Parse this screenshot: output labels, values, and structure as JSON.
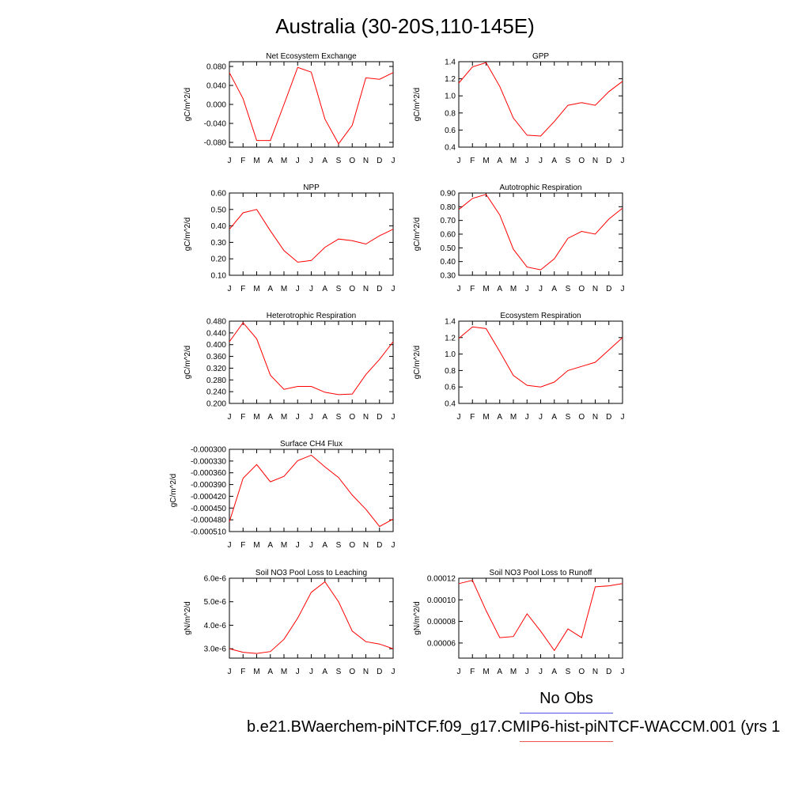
{
  "title": "Australia (30-20S,110-145E)",
  "legend": {
    "obs_label": "No Obs",
    "obs_color": "#5555ee",
    "model_color": "#ee5555"
  },
  "case_label": "b.e21.BWaerchem-piNTCF.f09_g17.CMIP6-hist-piNTCF-WACCM.001 (yrs 1",
  "line_color": "#ff0000",
  "chart_data": [
    {
      "type": "line",
      "title": "Net Ecosystem Exchange",
      "ylabel": "gC/m^2/d",
      "categories": [
        "J",
        "F",
        "M",
        "A",
        "M",
        "J",
        "J",
        "A",
        "S",
        "O",
        "N",
        "D",
        "J"
      ],
      "ylim": [
        -0.09,
        0.09
      ],
      "yticks": [
        -0.08,
        -0.04,
        0.0,
        0.04,
        0.08
      ],
      "yticklabels": [
        "-0.080",
        "-0.040",
        "0.000",
        "0.040",
        "0.080"
      ],
      "values": [
        0.067,
        0.012,
        -0.076,
        -0.076,
        0.0,
        0.078,
        0.068,
        -0.031,
        -0.083,
        -0.044,
        0.056,
        0.053,
        0.067
      ]
    },
    {
      "type": "line",
      "title": "GPP",
      "ylabel": "gC/m^2/d",
      "categories": [
        "J",
        "F",
        "M",
        "A",
        "M",
        "J",
        "J",
        "A",
        "S",
        "O",
        "N",
        "D",
        "J"
      ],
      "ylim": [
        0.4,
        1.4
      ],
      "yticks": [
        0.4,
        0.6,
        0.8,
        1.0,
        1.2,
        1.4
      ],
      "yticklabels": [
        "0.4",
        "0.6",
        "0.8",
        "1.0",
        "1.2",
        "1.4"
      ],
      "values": [
        1.15,
        1.34,
        1.39,
        1.11,
        0.74,
        0.54,
        0.53,
        0.7,
        0.89,
        0.92,
        0.89,
        1.05,
        1.17
      ]
    },
    {
      "type": "line",
      "title": "NPP",
      "ylabel": "gC/m^2/d",
      "categories": [
        "J",
        "F",
        "M",
        "A",
        "M",
        "J",
        "J",
        "A",
        "S",
        "O",
        "N",
        "D",
        "J"
      ],
      "ylim": [
        0.1,
        0.6
      ],
      "yticks": [
        0.1,
        0.2,
        0.3,
        0.4,
        0.5,
        0.6
      ],
      "yticklabels": [
        "0.10",
        "0.20",
        "0.30",
        "0.40",
        "0.50",
        "0.60"
      ],
      "values": [
        0.38,
        0.48,
        0.5,
        0.37,
        0.25,
        0.18,
        0.19,
        0.27,
        0.32,
        0.31,
        0.29,
        0.34,
        0.38
      ]
    },
    {
      "type": "line",
      "title": "Autotrophic Respiration",
      "ylabel": "gC/m^2/d",
      "categories": [
        "J",
        "F",
        "M",
        "A",
        "M",
        "J",
        "J",
        "A",
        "S",
        "O",
        "N",
        "D",
        "J"
      ],
      "ylim": [
        0.3,
        0.9
      ],
      "yticks": [
        0.3,
        0.4,
        0.5,
        0.6,
        0.7,
        0.8,
        0.9
      ],
      "yticklabels": [
        "0.30",
        "0.40",
        "0.50",
        "0.60",
        "0.70",
        "0.80",
        "0.90"
      ],
      "values": [
        0.78,
        0.86,
        0.89,
        0.74,
        0.49,
        0.36,
        0.34,
        0.42,
        0.57,
        0.62,
        0.6,
        0.71,
        0.79
      ]
    },
    {
      "type": "line",
      "title": "Heterotrophic Respiration",
      "ylabel": "gC/m^2/d",
      "categories": [
        "J",
        "F",
        "M",
        "A",
        "M",
        "J",
        "J",
        "A",
        "S",
        "O",
        "N",
        "D",
        "J"
      ],
      "ylim": [
        0.2,
        0.48
      ],
      "yticks": [
        0.2,
        0.24,
        0.28,
        0.32,
        0.36,
        0.4,
        0.44,
        0.48
      ],
      "yticklabels": [
        "0.200",
        "0.240",
        "0.280",
        "0.320",
        "0.360",
        "0.400",
        "0.440",
        "0.480"
      ],
      "values": [
        0.41,
        0.475,
        0.42,
        0.296,
        0.248,
        0.258,
        0.258,
        0.238,
        0.23,
        0.232,
        0.298,
        0.35,
        0.41
      ]
    },
    {
      "type": "line",
      "title": "Ecosystem Respiration",
      "ylabel": "gC/m^2/d",
      "categories": [
        "J",
        "F",
        "M",
        "A",
        "M",
        "J",
        "J",
        "A",
        "S",
        "O",
        "N",
        "D",
        "J"
      ],
      "ylim": [
        0.4,
        1.4
      ],
      "yticks": [
        0.4,
        0.6,
        0.8,
        1.0,
        1.2,
        1.4
      ],
      "yticklabels": [
        "0.4",
        "0.6",
        "0.8",
        "1.0",
        "1.2",
        "1.4"
      ],
      "values": [
        1.19,
        1.33,
        1.31,
        1.03,
        0.74,
        0.62,
        0.6,
        0.66,
        0.8,
        0.85,
        0.9,
        1.05,
        1.2
      ]
    },
    {
      "type": "line",
      "title": "Surface CH4 Flux",
      "ylabel": "gC/m^2/d",
      "categories": [
        "J",
        "F",
        "M",
        "A",
        "M",
        "J",
        "J",
        "A",
        "S",
        "O",
        "N",
        "D",
        "J"
      ],
      "ylim": [
        -0.00051,
        -0.0003
      ],
      "yticks": [
        -0.00051,
        -0.00048,
        -0.00045,
        -0.00042,
        -0.00039,
        -0.00036,
        -0.00033,
        -0.0003
      ],
      "yticklabels": [
        "-0.000510",
        "-0.000480",
        "-0.000450",
        "-0.000420",
        "-0.000390",
        "-0.000360",
        "-0.000330",
        "-0.000300"
      ],
      "values": [
        -0.000485,
        -0.000374,
        -0.000339,
        -0.000383,
        -0.000369,
        -0.000329,
        -0.000315,
        -0.000345,
        -0.000372,
        -0.000417,
        -0.000453,
        -0.000497,
        -0.000478
      ]
    },
    {
      "type": "line",
      "title": "Soil NO3 Pool Loss to Leaching",
      "ylabel": "gN/m^2/d",
      "categories": [
        "J",
        "F",
        "M",
        "A",
        "M",
        "J",
        "J",
        "A",
        "S",
        "O",
        "N",
        "D",
        "J"
      ],
      "ylim": [
        2.6e-06,
        6e-06
      ],
      "yticks": [
        3e-06,
        4e-06,
        5e-06,
        6e-06
      ],
      "yticklabels": [
        "3.0e-6",
        "4.0e-6",
        "5.0e-6",
        "6.0e-6"
      ],
      "values": [
        3e-06,
        2.85e-06,
        2.8e-06,
        2.88e-06,
        3.4e-06,
        4.3e-06,
        5.4e-06,
        5.85e-06,
        5e-06,
        3.75e-06,
        3.3e-06,
        3.2e-06,
        3e-06
      ]
    },
    {
      "type": "line",
      "title": "Soil NO3 Pool Loss to Runoff",
      "ylabel": "gN/m^2/d",
      "categories": [
        "J",
        "F",
        "M",
        "A",
        "M",
        "J",
        "J",
        "A",
        "S",
        "O",
        "N",
        "D",
        "J"
      ],
      "ylim": [
        4.6e-05,
        0.00012
      ],
      "yticks": [
        6e-05,
        8e-05,
        0.0001,
        0.00012
      ],
      "yticklabels": [
        "0.00006",
        "0.00008",
        "0.00010",
        "0.00012"
      ],
      "values": [
        0.000115,
        0.000118,
        9e-05,
        6.5e-05,
        6.6e-05,
        8.7e-05,
        7.1e-05,
        5.3e-05,
        7.3e-05,
        6.5e-05,
        0.000112,
        0.000113,
        0.000115
      ]
    }
  ]
}
